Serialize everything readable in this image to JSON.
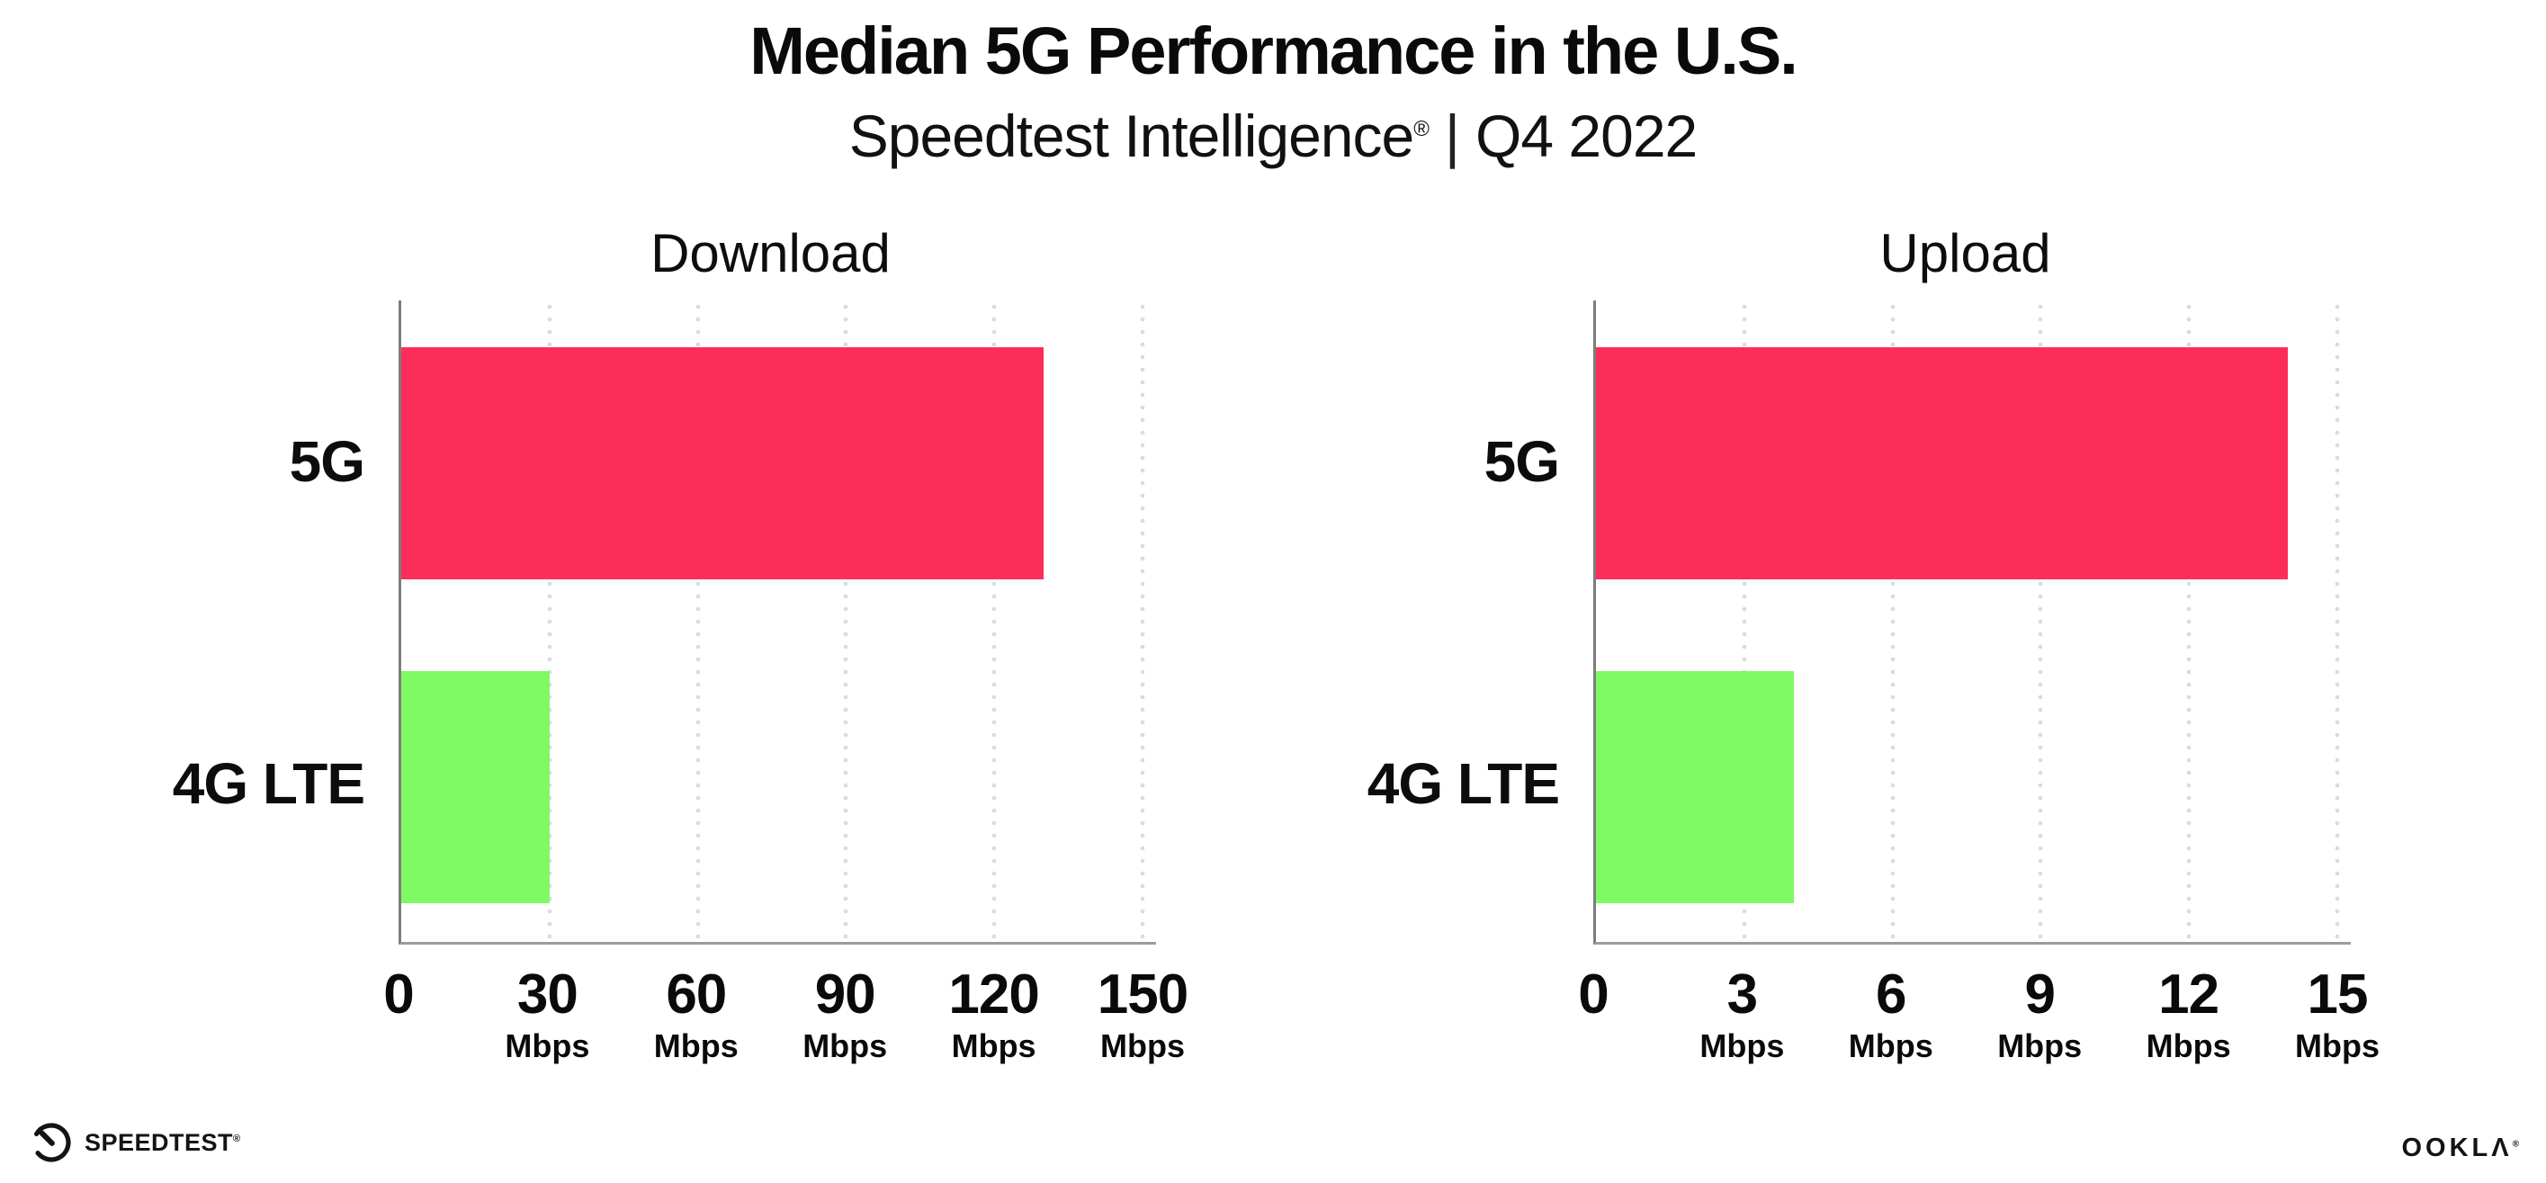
{
  "header": {
    "title": "Median 5G Performance in the U.S.",
    "subtitle_brand": "Speedtest Intelligence",
    "subtitle_reg": "®",
    "subtitle_sep": "|",
    "subtitle_period": "Q4 2022"
  },
  "colors": {
    "bar_5g": "#fd2d5a",
    "bar_4g_lte": "#80fa62",
    "gridline": "#d9dae5",
    "axis": "#9c9c9c"
  },
  "chart_data": [
    {
      "type": "bar",
      "orientation": "horizontal",
      "title": "Download",
      "categories": [
        "5G",
        "4G LTE"
      ],
      "values": [
        130,
        30
      ],
      "value_unit": "Mbps",
      "xlim": [
        0,
        150
      ],
      "xtick_values": [
        0,
        30,
        60,
        90,
        120,
        150
      ],
      "xticks": [
        {
          "label": "0",
          "unit": ""
        },
        {
          "label": "30",
          "unit": "Mbps"
        },
        {
          "label": "60",
          "unit": "Mbps"
        },
        {
          "label": "90",
          "unit": "Mbps"
        },
        {
          "label": "120",
          "unit": "Mbps"
        },
        {
          "label": "150",
          "unit": "Mbps"
        }
      ],
      "bar_colors": [
        "#fd2d5a",
        "#80fa62"
      ],
      "grid": "vertical dotted",
      "legend": "none"
    },
    {
      "type": "bar",
      "orientation": "horizontal",
      "title": "Upload",
      "categories": [
        "5G",
        "4G LTE"
      ],
      "values": [
        14,
        4
      ],
      "value_unit": "Mbps",
      "xlim": [
        0,
        15
      ],
      "xtick_values": [
        0,
        3,
        6,
        9,
        12,
        15
      ],
      "xticks": [
        {
          "label": "0",
          "unit": ""
        },
        {
          "label": "3",
          "unit": "Mbps"
        },
        {
          "label": "6",
          "unit": "Mbps"
        },
        {
          "label": "9",
          "unit": "Mbps"
        },
        {
          "label": "12",
          "unit": "Mbps"
        },
        {
          "label": "15",
          "unit": "Mbps"
        }
      ],
      "bar_colors": [
        "#fd2d5a",
        "#80fa62"
      ],
      "grid": "vertical dotted",
      "legend": "none"
    }
  ],
  "footer": {
    "speedtest_label": "SPEEDTEST",
    "speedtest_reg": "®",
    "ookla_label": "OOKLΛ",
    "ookla_reg": "®"
  }
}
